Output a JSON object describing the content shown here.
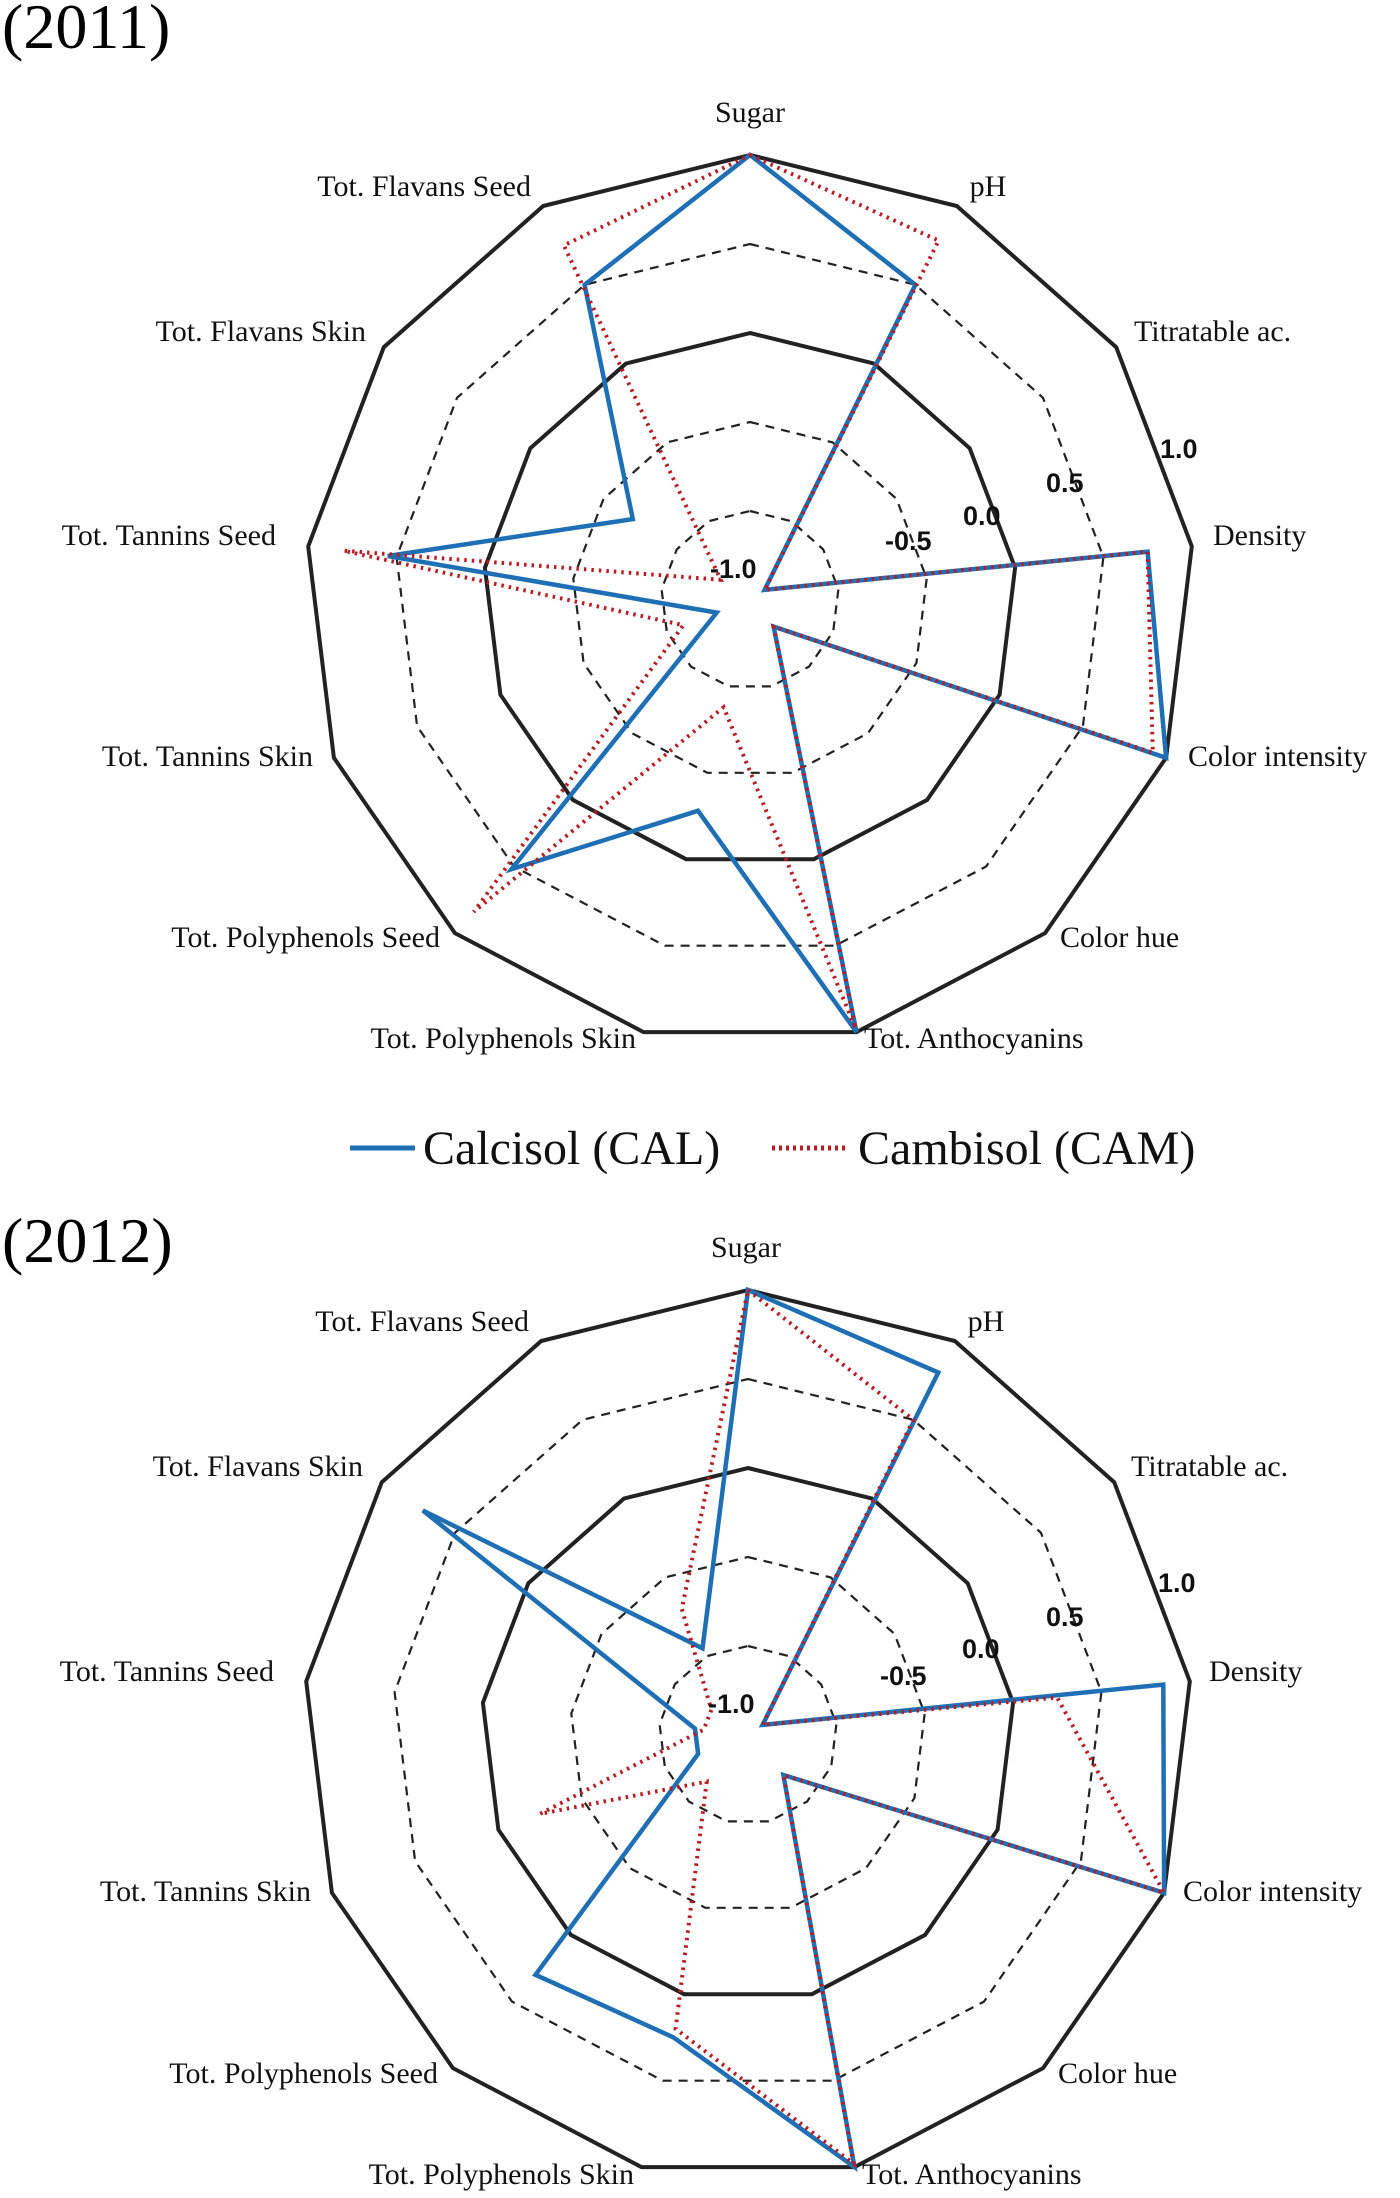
{
  "legend": {
    "cal_label": "Calcisol (CAL)",
    "cam_label": "Cambisol (CAM)"
  },
  "colors": {
    "cal": "#1f6fb5",
    "cam": "#b81c22",
    "grid_solid": "#222222",
    "grid_dashed": "#222222"
  },
  "chart_data": [
    {
      "type": "radar",
      "title": "(2011)",
      "axes": [
        "Sugar",
        "pH",
        "Titratable ac.",
        "Density",
        "Color intensity",
        "Color hue",
        "Tot. Anthocyanins",
        "Tot. Polyphenols Skin",
        "Tot. Polyphenols Seed",
        "Tot. Tannins Skin",
        "Tot. Tannins Seed",
        "Tot. Flavans Skin",
        "Tot. Flavans Seed"
      ],
      "ticks": [
        -1.0,
        -0.5,
        0.0,
        0.5,
        1.0
      ],
      "tick_labels": [
        "-1.0",
        "-0.5",
        "0.0",
        "0.5",
        "1.0"
      ],
      "range": [
        -1.5,
        1.0
      ],
      "series": [
        {
          "name": "Calcisol (CAL)",
          "values": [
            1.0,
            0.5,
            -1.4,
            0.75,
            1.0,
            -1.3,
            1.0,
            -0.28,
            0.52,
            -1.3,
            0.55,
            -0.7,
            0.5
          ]
        },
        {
          "name": "Cambisol (CAM)",
          "values": [
            1.0,
            0.78,
            -1.4,
            0.75,
            0.92,
            -1.3,
            0.98,
            -0.88,
            0.84,
            -1.1,
            0.8,
            -1.3,
            0.75
          ]
        }
      ]
    },
    {
      "type": "radar",
      "title": "(2012)",
      "axes": [
        "Sugar",
        "pH",
        "Titratable ac.",
        "Density",
        "Color intensity",
        "Color hue",
        "Tot. Anthocyanins",
        "Tot. Polyphenols Skin",
        "Tot. Polyphenols Seed",
        "Tot. Tannins Skin",
        "Tot. Tannins Seed",
        "Tot. Flavans Skin",
        "Tot. Flavans Seed"
      ],
      "ticks": [
        -1.0,
        -0.5,
        0.0,
        0.5,
        1.0
      ],
      "tick_labels": [
        "-1.0",
        "-0.5",
        "0.0",
        "0.5",
        "1.0"
      ],
      "range": [
        -1.5,
        1.0
      ],
      "series": [
        {
          "name": "Calcisol (CAL)",
          "values": [
            1.0,
            0.8,
            -1.4,
            0.85,
            1.0,
            -1.2,
            1.0,
            0.25,
            0.3,
            -1.2,
            -1.2,
            0.72,
            -0.95
          ]
        },
        {
          "name": "Cambisol (CAM)",
          "values": [
            1.0,
            0.5,
            -1.4,
            0.25,
            1.0,
            -1.2,
            0.98,
            0.2,
            -1.15,
            -0.25,
            -1.25,
            -1.25,
            -0.7
          ]
        }
      ]
    }
  ]
}
